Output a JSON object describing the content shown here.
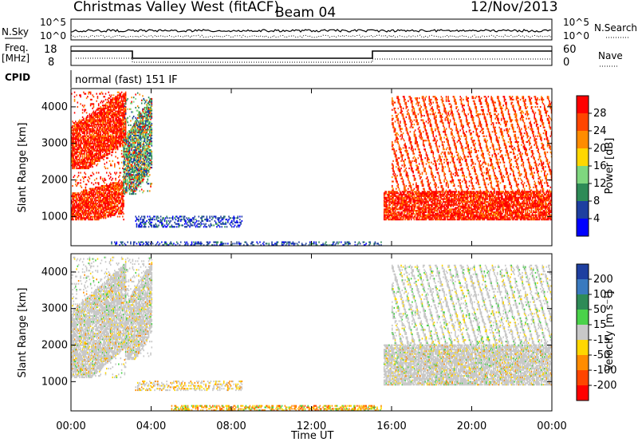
{
  "header": {
    "title": "Christmas Valley West (fitACF)",
    "beam": "Beam 04",
    "date": "12/Nov/2013"
  },
  "strips": {
    "nsky_label": "N.Sky",
    "nsearch_label": "N.Search",
    "nsky_ticks": [
      "10^5",
      "10^0"
    ],
    "freq_label": "Freq.",
    "freq_unit": "[MHz]",
    "freq_ticks": [
      "18",
      "8"
    ],
    "nave_label": "Nave",
    "nave_ticks": [
      "60",
      "0"
    ],
    "cpid_label": "CPID",
    "cpid_value": "normal (fast) 151 IF"
  },
  "colorbars": {
    "power": {
      "label": "Power [dB]",
      "ticks": [
        "28",
        "24",
        "20",
        "16",
        "12",
        "8",
        "4"
      ],
      "colors": [
        "#ff0000",
        "#ff4500",
        "#ff8c00",
        "#ffd700",
        "#7fd77f",
        "#2e8b57",
        "#1e3fa0",
        "#0000ff"
      ]
    },
    "velocity": {
      "label": "Velocity [m s⁻¹]",
      "ticks": [
        "200",
        "100",
        "50",
        "15",
        "-15",
        "-50",
        "-100",
        "-200"
      ],
      "colors": [
        "#1e3fa0",
        "#3a7abf",
        "#2e8b57",
        "#4ad24a",
        "#c8c8c8",
        "#ffd700",
        "#ff8c00",
        "#ff4500",
        "#ff0000"
      ]
    }
  },
  "chart_data": [
    {
      "type": "heatmap",
      "name": "Power",
      "ylabel": "Slant Range [km]",
      "xlabel": "Time UT",
      "xlim": [
        "00:00",
        "24:00"
      ],
      "ylim": [
        200,
        4500
      ],
      "yticks": [
        1000,
        2000,
        3000,
        4000
      ],
      "xticks": [
        "00:00",
        "04:00",
        "08:00",
        "12:00",
        "16:00",
        "20:00",
        "00:00"
      ],
      "regions": [
        {
          "t0": 0.0,
          "t1": 2.6,
          "r0": 900,
          "r1": 2200,
          "level": "high",
          "slant": 0.35
        },
        {
          "t0": 0.0,
          "t1": 2.7,
          "r0": 2300,
          "r1": 4400,
          "level": "high",
          "slant": 0.6
        },
        {
          "t0": 2.6,
          "t1": 4.0,
          "r0": 1600,
          "r1": 4400,
          "level": "mid",
          "slant": 0.5
        },
        {
          "t0": 3.2,
          "t1": 8.5,
          "r0": 700,
          "r1": 1000,
          "level": "low",
          "slant": 0
        },
        {
          "t0": 2.0,
          "t1": 15.5,
          "r0": 200,
          "r1": 320,
          "level": "low",
          "slant": 0
        },
        {
          "t0": 15.6,
          "t1": 24.0,
          "r0": 900,
          "r1": 1700,
          "level": "high",
          "slant": 0
        },
        {
          "t0": 16.0,
          "t1": 24.0,
          "r0": 1700,
          "r1": 4300,
          "level": "streak",
          "slant": 0
        }
      ]
    },
    {
      "type": "heatmap",
      "name": "Velocity",
      "ylabel": "Slant Range [km]",
      "xlabel": "Time UT",
      "xlim": [
        "00:00",
        "24:00"
      ],
      "ylim": [
        200,
        4500
      ],
      "yticks": [
        1000,
        2000,
        3000,
        4000
      ],
      "xticks": [
        "00:00",
        "04:00",
        "08:00",
        "12:00",
        "16:00",
        "20:00",
        "00:00"
      ],
      "regions": [
        {
          "t0": 0.0,
          "t1": 2.7,
          "r0": 1100,
          "r1": 4400,
          "level": "gray",
          "slant": 0.5
        },
        {
          "t0": 2.7,
          "t1": 4.0,
          "r0": 1600,
          "r1": 4400,
          "level": "gray",
          "slant": 0.5
        },
        {
          "t0": 3.2,
          "t1": 8.5,
          "r0": 750,
          "r1": 1000,
          "level": "mixed",
          "slant": 0
        },
        {
          "t0": 5.0,
          "t1": 15.5,
          "r0": 200,
          "r1": 330,
          "level": "orange",
          "slant": 0
        },
        {
          "t0": 15.6,
          "t1": 24.0,
          "r0": 900,
          "r1": 2000,
          "level": "gray",
          "slant": 0
        },
        {
          "t0": 16.0,
          "t1": 24.0,
          "r0": 2000,
          "r1": 4200,
          "level": "gray_streak",
          "slant": 0
        }
      ]
    }
  ]
}
